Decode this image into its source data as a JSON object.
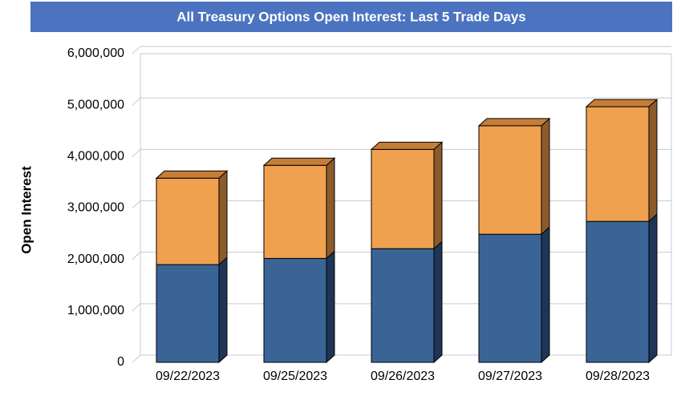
{
  "chart_data": {
    "type": "stacked-bar-3d",
    "title": "All Treasury Options Open Interest: Last 5 Trade Days",
    "y_label": "Open Interest",
    "categories": [
      "09/22/2023",
      "09/25/2023",
      "09/26/2023",
      "09/27/2023",
      "09/28/2023"
    ],
    "series": [
      {
        "color": "#3a6496",
        "side_color": "#1f3557",
        "values": [
          1900000,
          2020000,
          2210000,
          2490000,
          2740000
        ]
      },
      {
        "color": "#f0a14f",
        "side_color": "#8c5b2b",
        "top_color": "#c67d36",
        "values": [
          1680000,
          1810000,
          1930000,
          2110000,
          2230000
        ]
      }
    ],
    "ylim": [
      0,
      6000000
    ],
    "yticks": [
      0,
      {
        "value": 1000000,
        "label": "1,000,000"
      },
      {
        "value": 2000000,
        "label": "2,000,000"
      },
      {
        "value": 3000000,
        "label": "3,000,000"
      },
      {
        "value": 4000000,
        "label": "4,000,000"
      },
      {
        "value": 5000000,
        "label": "5,000,000"
      },
      {
        "value": 6000000,
        "label": "6,000,000"
      }
    ],
    "grid": true
  }
}
